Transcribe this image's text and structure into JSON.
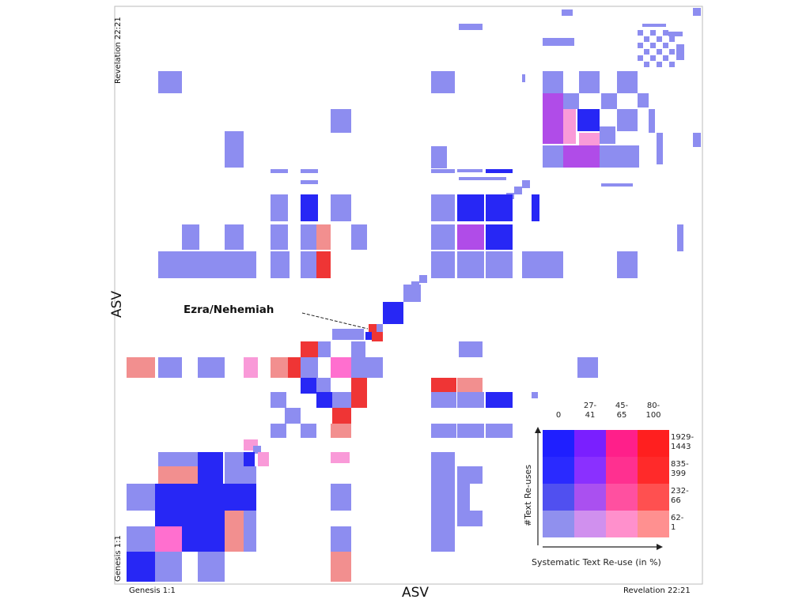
{
  "chart_data": {
    "type": "heatmap",
    "xlabel": "ASV",
    "ylabel": "ASV",
    "x_ticks": [
      "Genesis 1:1",
      "Revelation 22:21"
    ],
    "y_ticks": [
      "Genesis 1:1",
      "Revelation 22:21"
    ],
    "annotation": "Ezra/Nehemiah",
    "legend": {
      "x_title": "Systematic Text Re-use (in %)",
      "y_title": "#Text Re-uses",
      "x_bins": [
        "0",
        "27-\n41",
        "45-\n65",
        "80-\n100"
      ],
      "y_bins": [
        "1929-\n1443",
        "835-\n399",
        "232-\n66",
        "62-\n1"
      ],
      "colors": [
        [
          "#1f1fff",
          "#7a1fff",
          "#ff1f8a",
          "#ff1f1f"
        ],
        [
          "#2a2aff",
          "#8a30ff",
          "#ff3090",
          "#ff2a2a"
        ],
        [
          "#5050f0",
          "#aa50f0",
          "#ff50a0",
          "#ff5050"
        ],
        [
          "#9090ee",
          "#d090ee",
          "#ff90cc",
          "#ff9090"
        ]
      ]
    },
    "colors": {
      "light_blue": "#8d8df0",
      "blue": "#2727f5",
      "purple": "#b04ce8",
      "light_red": "#f28f8f",
      "red": "#ef3535",
      "pink": "#ff6fcf",
      "light_pink": "#f99ad8"
    }
  }
}
